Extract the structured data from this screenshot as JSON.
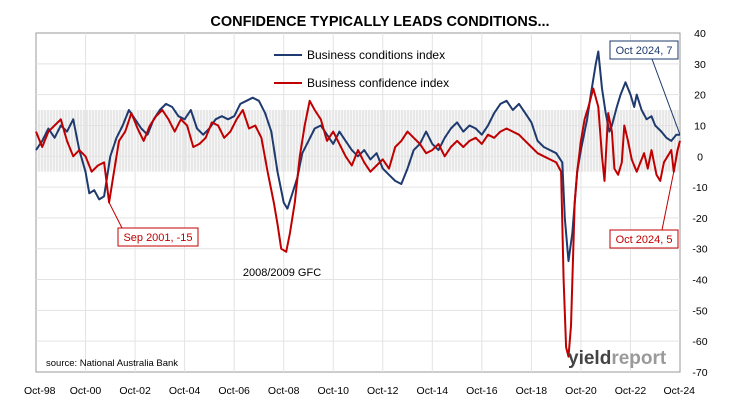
{
  "chart_data": {
    "type": "line",
    "title": "CONFIDENCE TYPICALLY LEADS CONDITIONS...",
    "source_note": "source: National Australia Bank",
    "brand": "yieldreport",
    "brand_parts": [
      "yield",
      "report"
    ],
    "colors": {
      "conditions": "#1f3a6e",
      "confidence": "#c00000",
      "band": "#d9d9d9",
      "frame": "#999999",
      "text": "#000000"
    },
    "x_ticks": [
      "Oct-98",
      "Oct-00",
      "Oct-02",
      "Oct-04",
      "Oct-06",
      "Oct-08",
      "Oct-10",
      "Oct-12",
      "Oct-14",
      "Oct-16",
      "Oct-18",
      "Oct-20",
      "Oct-22",
      "Oct-24"
    ],
    "xlim": [
      1998.75,
      2024.75
    ],
    "ylim": [
      -70,
      40
    ],
    "y_ticks": [
      40,
      30,
      20,
      10,
      0,
      -10,
      -20,
      -30,
      -40,
      -50,
      -60,
      -70
    ],
    "band_range": [
      -5,
      15
    ],
    "legend": {
      "placement": "top-center"
    },
    "series": [
      {
        "name": "Business conditions index",
        "color": "#1f3a6e",
        "points": [
          [
            1998.75,
            2
          ],
          [
            1999.0,
            5
          ],
          [
            1999.25,
            9
          ],
          [
            1999.5,
            6
          ],
          [
            1999.75,
            10
          ],
          [
            2000.0,
            8
          ],
          [
            2000.25,
            12
          ],
          [
            2000.5,
            2
          ],
          [
            2000.75,
            -5
          ],
          [
            2000.9,
            -12
          ],
          [
            2001.1,
            -11
          ],
          [
            2001.3,
            -14
          ],
          [
            2001.5,
            -13
          ],
          [
            2001.75,
            0
          ],
          [
            2002.0,
            6
          ],
          [
            2002.25,
            10
          ],
          [
            2002.5,
            15
          ],
          [
            2002.75,
            12
          ],
          [
            2003.0,
            9
          ],
          [
            2003.25,
            7
          ],
          [
            2003.5,
            12
          ],
          [
            2003.75,
            15
          ],
          [
            2004.0,
            17
          ],
          [
            2004.25,
            16
          ],
          [
            2004.5,
            13
          ],
          [
            2004.75,
            12
          ],
          [
            2005.0,
            15
          ],
          [
            2005.25,
            9
          ],
          [
            2005.5,
            7
          ],
          [
            2005.75,
            9
          ],
          [
            2006.0,
            12
          ],
          [
            2006.25,
            13
          ],
          [
            2006.5,
            12
          ],
          [
            2006.75,
            13
          ],
          [
            2007.0,
            17
          ],
          [
            2007.25,
            18
          ],
          [
            2007.5,
            19
          ],
          [
            2007.75,
            18
          ],
          [
            2008.0,
            14
          ],
          [
            2008.25,
            8
          ],
          [
            2008.5,
            -5
          ],
          [
            2008.75,
            -15
          ],
          [
            2008.9,
            -17
          ],
          [
            2009.1,
            -12
          ],
          [
            2009.3,
            -7
          ],
          [
            2009.5,
            1
          ],
          [
            2009.75,
            5
          ],
          [
            2010.0,
            9
          ],
          [
            2010.25,
            10
          ],
          [
            2010.5,
            7
          ],
          [
            2010.75,
            4
          ],
          [
            2011.0,
            8
          ],
          [
            2011.25,
            5
          ],
          [
            2011.5,
            2
          ],
          [
            2011.75,
            0
          ],
          [
            2012.0,
            2
          ],
          [
            2012.25,
            -1
          ],
          [
            2012.5,
            1
          ],
          [
            2012.75,
            -4
          ],
          [
            2013.0,
            -6
          ],
          [
            2013.25,
            -8
          ],
          [
            2013.5,
            -9
          ],
          [
            2013.75,
            -4
          ],
          [
            2014.0,
            2
          ],
          [
            2014.25,
            4
          ],
          [
            2014.5,
            8
          ],
          [
            2014.75,
            4
          ],
          [
            2015.0,
            2
          ],
          [
            2015.25,
            6
          ],
          [
            2015.5,
            9
          ],
          [
            2015.75,
            11
          ],
          [
            2016.0,
            8
          ],
          [
            2016.25,
            10
          ],
          [
            2016.5,
            9
          ],
          [
            2016.75,
            7
          ],
          [
            2017.0,
            10
          ],
          [
            2017.25,
            14
          ],
          [
            2017.5,
            17
          ],
          [
            2017.75,
            18
          ],
          [
            2018.0,
            15
          ],
          [
            2018.25,
            17
          ],
          [
            2018.5,
            14
          ],
          [
            2018.75,
            11
          ],
          [
            2019.0,
            5
          ],
          [
            2019.25,
            3
          ],
          [
            2019.5,
            2
          ],
          [
            2019.75,
            1
          ],
          [
            2020.0,
            -2
          ],
          [
            2020.1,
            -20
          ],
          [
            2020.25,
            -34
          ],
          [
            2020.4,
            -25
          ],
          [
            2020.6,
            -5
          ],
          [
            2020.75,
            2
          ],
          [
            2021.0,
            12
          ],
          [
            2021.15,
            20
          ],
          [
            2021.35,
            30
          ],
          [
            2021.45,
            34
          ],
          [
            2021.6,
            22
          ],
          [
            2021.75,
            14
          ],
          [
            2021.9,
            8
          ],
          [
            2022.0,
            10
          ],
          [
            2022.2,
            16
          ],
          [
            2022.35,
            20
          ],
          [
            2022.55,
            24
          ],
          [
            2022.75,
            20
          ],
          [
            2022.9,
            16
          ],
          [
            2023.0,
            20
          ],
          [
            2023.2,
            15
          ],
          [
            2023.4,
            12
          ],
          [
            2023.6,
            13
          ],
          [
            2023.75,
            10
          ],
          [
            2024.0,
            8
          ],
          [
            2024.2,
            6
          ],
          [
            2024.4,
            5
          ],
          [
            2024.6,
            7
          ],
          [
            2024.75,
            7
          ]
        ]
      },
      {
        "name": "Business confidence index",
        "color": "#c00000",
        "points": [
          [
            1998.75,
            8
          ],
          [
            1999.0,
            3
          ],
          [
            1999.25,
            8
          ],
          [
            1999.5,
            10
          ],
          [
            1999.75,
            12
          ],
          [
            2000.0,
            5
          ],
          [
            2000.25,
            0
          ],
          [
            2000.5,
            2
          ],
          [
            2000.75,
            0
          ],
          [
            2001.0,
            -5
          ],
          [
            2001.25,
            -3
          ],
          [
            2001.5,
            -2
          ],
          [
            2001.7,
            -15
          ],
          [
            2001.9,
            -5
          ],
          [
            2002.1,
            5
          ],
          [
            2002.35,
            8
          ],
          [
            2002.6,
            14
          ],
          [
            2002.85,
            9
          ],
          [
            2003.1,
            5
          ],
          [
            2003.35,
            10
          ],
          [
            2003.6,
            13
          ],
          [
            2003.85,
            15
          ],
          [
            2004.1,
            12
          ],
          [
            2004.35,
            8
          ],
          [
            2004.6,
            12
          ],
          [
            2004.85,
            10
          ],
          [
            2005.1,
            3
          ],
          [
            2005.35,
            4
          ],
          [
            2005.6,
            6
          ],
          [
            2005.85,
            11
          ],
          [
            2006.1,
            10
          ],
          [
            2006.35,
            6
          ],
          [
            2006.6,
            8
          ],
          [
            2006.85,
            12
          ],
          [
            2007.1,
            15
          ],
          [
            2007.35,
            9
          ],
          [
            2007.6,
            10
          ],
          [
            2007.85,
            6
          ],
          [
            2008.1,
            -5
          ],
          [
            2008.35,
            -15
          ],
          [
            2008.5,
            -22
          ],
          [
            2008.65,
            -30
          ],
          [
            2008.85,
            -31
          ],
          [
            2009.0,
            -25
          ],
          [
            2009.2,
            -15
          ],
          [
            2009.4,
            0
          ],
          [
            2009.6,
            10
          ],
          [
            2009.8,
            18
          ],
          [
            2010.0,
            15
          ],
          [
            2010.25,
            12
          ],
          [
            2010.5,
            5
          ],
          [
            2010.75,
            8
          ],
          [
            2011.0,
            4
          ],
          [
            2011.25,
            0
          ],
          [
            2011.5,
            -3
          ],
          [
            2011.75,
            2
          ],
          [
            2012.0,
            -2
          ],
          [
            2012.25,
            -5
          ],
          [
            2012.5,
            -3
          ],
          [
            2012.75,
            -1
          ],
          [
            2013.0,
            -4
          ],
          [
            2013.25,
            3
          ],
          [
            2013.5,
            5
          ],
          [
            2013.75,
            8
          ],
          [
            2014.0,
            6
          ],
          [
            2014.25,
            4
          ],
          [
            2014.5,
            1
          ],
          [
            2014.75,
            2
          ],
          [
            2015.0,
            4
          ],
          [
            2015.25,
            0
          ],
          [
            2015.5,
            3
          ],
          [
            2015.75,
            5
          ],
          [
            2016.0,
            3
          ],
          [
            2016.25,
            5
          ],
          [
            2016.5,
            6
          ],
          [
            2016.75,
            4
          ],
          [
            2017.0,
            7
          ],
          [
            2017.25,
            6
          ],
          [
            2017.5,
            8
          ],
          [
            2017.75,
            9
          ],
          [
            2018.0,
            8
          ],
          [
            2018.25,
            7
          ],
          [
            2018.5,
            5
          ],
          [
            2018.75,
            3
          ],
          [
            2019.0,
            1
          ],
          [
            2019.25,
            0
          ],
          [
            2019.5,
            -1
          ],
          [
            2019.75,
            -2
          ],
          [
            2019.95,
            -5
          ],
          [
            2020.05,
            -40
          ],
          [
            2020.15,
            -62
          ],
          [
            2020.25,
            -65
          ],
          [
            2020.35,
            -55
          ],
          [
            2020.5,
            -15
          ],
          [
            2020.6,
            -5
          ],
          [
            2020.75,
            5
          ],
          [
            2020.9,
            12
          ],
          [
            2021.05,
            16
          ],
          [
            2021.25,
            22
          ],
          [
            2021.45,
            16
          ],
          [
            2021.6,
            0
          ],
          [
            2021.7,
            -8
          ],
          [
            2021.85,
            14
          ],
          [
            2022.0,
            8
          ],
          [
            2022.1,
            -4
          ],
          [
            2022.25,
            -6
          ],
          [
            2022.4,
            -2
          ],
          [
            2022.5,
            10
          ],
          [
            2022.65,
            5
          ],
          [
            2022.8,
            -1
          ],
          [
            2023.0,
            -5
          ],
          [
            2023.15,
            -2
          ],
          [
            2023.3,
            1
          ],
          [
            2023.45,
            -4
          ],
          [
            2023.6,
            2
          ],
          [
            2023.8,
            -6
          ],
          [
            2023.95,
            -8
          ],
          [
            2024.1,
            -2
          ],
          [
            2024.25,
            0
          ],
          [
            2024.4,
            2
          ],
          [
            2024.5,
            -5
          ],
          [
            2024.65,
            2
          ],
          [
            2024.75,
            5
          ]
        ]
      }
    ],
    "annotations": [
      {
        "text": "Sep 2001, -15",
        "x": 2001.7,
        "y": -15,
        "color": "#c00000",
        "boxed": true
      },
      {
        "text": "2008/2009 GFC",
        "x": 2008.9,
        "y": -39,
        "color": "#000000",
        "boxed": false
      },
      {
        "text": "Oct 2024, 7",
        "x": 2024.75,
        "y": 7,
        "color": "#1f3a6e",
        "boxed": true
      },
      {
        "text": "Oct 2024, 5",
        "x": 2024.75,
        "y": 5,
        "color": "#c00000",
        "boxed": true
      }
    ]
  }
}
